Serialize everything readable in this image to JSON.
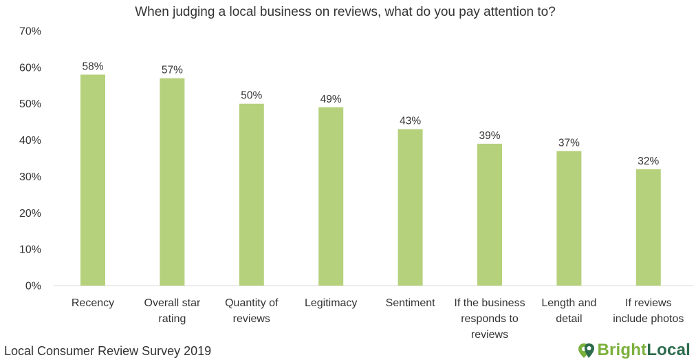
{
  "chart_data": {
    "type": "bar",
    "title": "When judging a local business on reviews, what do you pay attention to?",
    "categories": [
      [
        "Recency"
      ],
      [
        "Overall star",
        "rating"
      ],
      [
        "Quantity of",
        "reviews"
      ],
      [
        "Legitimacy"
      ],
      [
        "Sentiment"
      ],
      [
        "If the business",
        "responds to",
        "reviews"
      ],
      [
        "Length and",
        "detail"
      ],
      [
        "If reviews",
        "include photos"
      ]
    ],
    "values": [
      58,
      57,
      50,
      49,
      43,
      39,
      37,
      32
    ],
    "data_labels": [
      "58%",
      "57%",
      "50%",
      "49%",
      "43%",
      "39%",
      "37%",
      "32%"
    ],
    "y_ticks": [
      "0%",
      "10%",
      "20%",
      "30%",
      "40%",
      "50%",
      "60%",
      "70%"
    ],
    "y_tick_values": [
      0,
      10,
      20,
      30,
      40,
      50,
      60,
      70
    ],
    "ylim": [
      0,
      70
    ],
    "xlabel": "",
    "ylabel": "",
    "grid": false,
    "legend": "none",
    "bar_color": "#b5d17c",
    "axis_color": "#d9d9d9"
  },
  "footer": {
    "source": "Local Consumer Review Survey 2019"
  },
  "brand": {
    "part1": "Bright",
    "part2": "Local",
    "icon": "brightlocal-pin-icon",
    "color1": "#7bb03c",
    "color2": "#2c6b4c"
  }
}
